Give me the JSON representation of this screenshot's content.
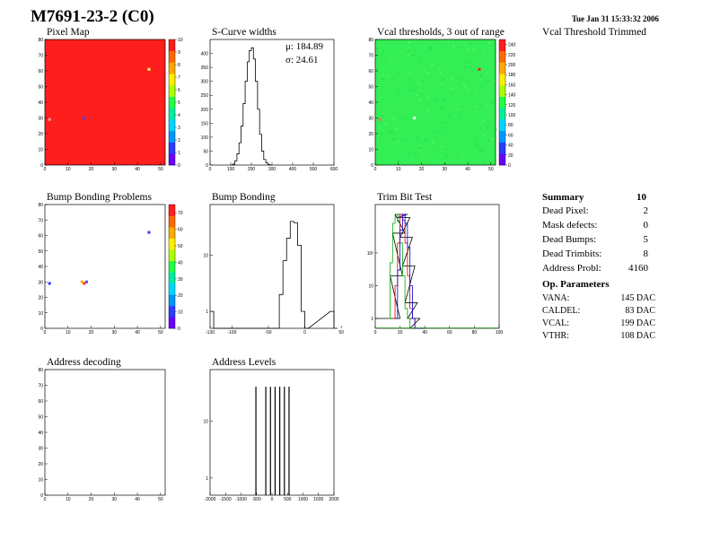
{
  "page": {
    "title": "M7691-23-2 (C0)",
    "date": "Tue Jan 31 15:33:32 2006"
  },
  "titles": {
    "pixel_map": "Pixel Map",
    "scurve": "S-Curve widths",
    "vcal": "Vcal thresholds, 3 out of range",
    "vcal_trimmed": "Vcal Threshold Trimmed",
    "bump_problems": "Bump Bonding Problems",
    "bump": "Bump Bonding",
    "trim": "Trim Bit Test",
    "addr_dec": "Address decoding",
    "addr_lev": "Address Levels"
  },
  "scurve_stats": {
    "mu": "μ: 184.89",
    "sigma": "σ: 24.61"
  },
  "summary": {
    "header": "Summary",
    "total": "10",
    "rows": [
      {
        "label": "Dead Pixel:",
        "value": "2"
      },
      {
        "label": "Mask defects:",
        "value": "0"
      },
      {
        "label": "Dead Bumps:",
        "value": "5"
      },
      {
        "label": "Dead Trimbits:",
        "value": "8"
      },
      {
        "label": "Address Probl:",
        "value": "4160"
      }
    ]
  },
  "op_params": {
    "header": "Op. Parameters",
    "rows": [
      {
        "label": "VANA:",
        "value": "145 DAC"
      },
      {
        "label": "CALDEL:",
        "value": "83 DAC"
      },
      {
        "label": "VCAL:",
        "value": "199 DAC"
      },
      {
        "label": "VTHR:",
        "value": "108 DAC"
      }
    ]
  },
  "chart_data": [
    {
      "id": "pixel_map",
      "type": "heatmap",
      "title": "Pixel Map",
      "xlim": [
        0,
        52
      ],
      "ylim": [
        0,
        80
      ],
      "xticks": [
        0,
        10,
        20,
        30,
        40,
        50
      ],
      "yticks": [
        0,
        10,
        20,
        30,
        40,
        50,
        60,
        70,
        80
      ],
      "zlim": [
        0,
        10
      ],
      "zticks": [
        0,
        1,
        2,
        3,
        4,
        5,
        6,
        7,
        8,
        9,
        10
      ],
      "fill_value": 10,
      "fill_color": "#ff1e1e",
      "special_points": [
        {
          "x": 45,
          "y": 61,
          "color": "#ffff66"
        },
        {
          "x": 17,
          "y": 30,
          "color": "#4444ff"
        },
        {
          "x": 2,
          "y": 29,
          "color": "#ff9999"
        }
      ]
    },
    {
      "id": "scurve",
      "type": "line",
      "title": "S-Curve widths",
      "xlim": [
        0,
        600
      ],
      "ylim": [
        0,
        450
      ],
      "xticks": [
        0,
        100,
        200,
        300,
        400,
        500,
        600
      ],
      "yticks": [
        0,
        50,
        100,
        150,
        200,
        250,
        300,
        350,
        400
      ],
      "x": [
        100,
        110,
        120,
        130,
        140,
        150,
        160,
        170,
        180,
        190,
        200,
        210,
        220,
        230,
        240,
        250,
        260,
        270,
        280,
        290
      ],
      "y": [
        0,
        3,
        15,
        40,
        80,
        140,
        220,
        300,
        370,
        410,
        420,
        380,
        300,
        200,
        110,
        50,
        20,
        8,
        2,
        0
      ]
    },
    {
      "id": "vcal",
      "type": "heatmap",
      "title": "Vcal thresholds, 3 out of range",
      "xlim": [
        0,
        52
      ],
      "ylim": [
        0,
        80
      ],
      "xticks": [
        0,
        10,
        20,
        30,
        40,
        50
      ],
      "yticks": [
        0,
        10,
        20,
        30,
        40,
        50,
        60,
        70,
        80
      ],
      "zlim": [
        0,
        250
      ],
      "zticks": [
        0,
        20,
        40,
        60,
        80,
        100,
        120,
        140,
        160,
        180,
        200,
        220,
        240
      ],
      "fill_value": 110,
      "fill_color": "#33ee55",
      "special_points": [
        {
          "x": 45,
          "y": 61,
          "color": "#ff2222"
        },
        {
          "x": 17,
          "y": 30,
          "color": "#ffffff"
        },
        {
          "x": 2,
          "y": 29,
          "color": "#ff6666"
        }
      ]
    },
    {
      "id": "bump_problems",
      "type": "heatmap",
      "title": "Bump Bonding Problems",
      "xlim": [
        0,
        52
      ],
      "ylim": [
        0,
        80
      ],
      "xticks": [
        0,
        10,
        20,
        30,
        40,
        50
      ],
      "yticks": [
        0,
        10,
        20,
        30,
        40,
        50,
        60,
        70,
        80
      ],
      "zlim": [
        0,
        75
      ],
      "zticks": [
        0,
        10,
        20,
        30,
        40,
        50,
        60,
        70
      ],
      "fill_value": null,
      "fill_color": "#ffffff",
      "special_points": [
        {
          "x": 45,
          "y": 62,
          "color": "#3333ff"
        },
        {
          "x": 18,
          "y": 30,
          "color": "#4444ff"
        },
        {
          "x": 17,
          "y": 29,
          "color": "#ff3300"
        },
        {
          "x": 16,
          "y": 30,
          "color": "#ffaa00"
        },
        {
          "x": 2,
          "y": 29,
          "color": "#3333ff"
        }
      ]
    },
    {
      "id": "bump",
      "type": "line",
      "title": "Bump Bonding",
      "xlim": [
        -130,
        40
      ],
      "log_y": true,
      "ylim": [
        0.5,
        80
      ],
      "xticks": [
        -130,
        -100,
        -50,
        0,
        50
      ],
      "yticks": [
        1,
        10
      ],
      "x": [
        -130,
        -125,
        -40,
        -35,
        -30,
        -25,
        -20,
        -15,
        -10,
        -5,
        0,
        35,
        40
      ],
      "y": [
        1,
        0,
        0,
        2,
        8,
        20,
        40,
        38,
        15,
        1,
        0,
        1,
        0
      ]
    },
    {
      "id": "trim",
      "type": "line",
      "title": "Trim Bit Test",
      "xlim": [
        0,
        100
      ],
      "log_y": true,
      "ylim": [
        0.5,
        3000
      ],
      "xticks": [
        0,
        20,
        40,
        60,
        80,
        100
      ],
      "yticks": [
        1,
        10,
        100
      ],
      "series": [
        {
          "color": "#000000",
          "x": [
            0,
            10,
            12,
            14,
            16,
            18,
            20,
            22,
            24,
            26,
            28,
            30
          ],
          "y": [
            1,
            1,
            20,
            400,
            1500,
            1200,
            300,
            40,
            3,
            1,
            0,
            0
          ]
        },
        {
          "color": "#00aa00",
          "x": [
            10,
            12,
            14,
            16,
            18,
            20,
            22,
            24,
            26,
            28
          ],
          "y": [
            1,
            50,
            800,
            1500,
            900,
            200,
            20,
            2,
            1,
            0
          ]
        },
        {
          "color": "#dd0000",
          "x": [
            14,
            16,
            18,
            20,
            22,
            24,
            26,
            28,
            30,
            32
          ],
          "y": [
            1,
            10,
            200,
            1500,
            1000,
            200,
            20,
            2,
            1,
            0
          ]
        },
        {
          "color": "#0000dd",
          "x": [
            16,
            18,
            20,
            22,
            24,
            26,
            28,
            30,
            32,
            34
          ],
          "y": [
            1,
            30,
            500,
            1500,
            800,
            150,
            10,
            1,
            0,
            0
          ]
        }
      ]
    },
    {
      "id": "addr_dec",
      "type": "heatmap",
      "title": "Address decoding",
      "xlim": [
        0,
        52
      ],
      "ylim": [
        0,
        80
      ],
      "xticks": [
        0,
        10,
        20,
        30,
        40,
        50
      ],
      "yticks": [
        0,
        10,
        20,
        30,
        40,
        50,
        60,
        70,
        80
      ],
      "fill_value": null,
      "fill_color": "#ffffff",
      "special_points": []
    },
    {
      "id": "addr_lev",
      "type": "line",
      "title": "Address Levels",
      "xlim": [
        -2000,
        2000
      ],
      "log_y": true,
      "ylim": [
        0.5,
        80
      ],
      "xticks": [
        -2000,
        -1500,
        -1000,
        -500,
        0,
        500,
        1000,
        1500,
        2000
      ],
      "yticks": [
        1,
        10
      ],
      "spikes_x": [
        -520,
        -200,
        -50,
        100,
        250,
        400,
        550
      ],
      "spikes_y": [
        40,
        40,
        40,
        40,
        40,
        40,
        40
      ]
    }
  ]
}
